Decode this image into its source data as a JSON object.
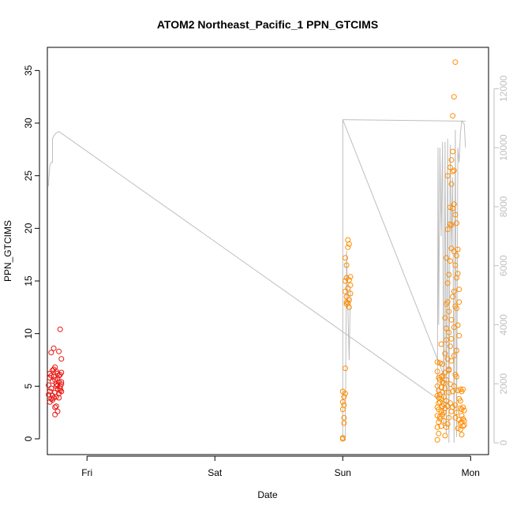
{
  "chart_data": {
    "type": "scatter",
    "title": "ATOM2 Northeast_Pacific_1 PPN_GTCIMS",
    "xlabel": "Date",
    "ylabel": "PPN_GTCIMS",
    "x_ticks": [
      "Fri",
      "Sat",
      "Sun",
      "Mon"
    ],
    "x_tick_positions_days": [
      1,
      2,
      3,
      4
    ],
    "xlim_days": [
      0.69,
      4.14
    ],
    "ylim": [
      -1.5,
      37.2
    ],
    "y_ticks": [
      0,
      5,
      10,
      15,
      20,
      25,
      30,
      35
    ],
    "y2_ticks": [
      0,
      2000,
      4000,
      6000,
      8000,
      10000,
      12000
    ],
    "y2lim": [
      -400,
      13400
    ],
    "colors": {
      "flight1": "#e8140f",
      "flight2": "#ff8c00",
      "altitude_line": "#bebebe"
    },
    "series": [
      {
        "color": "#e8140f",
        "points": [
          [
            0.7,
            4.2
          ],
          [
            0.7,
            5.1
          ],
          [
            0.71,
            3.5
          ],
          [
            0.71,
            6.2
          ],
          [
            0.72,
            4.8
          ],
          [
            0.72,
            3.8
          ],
          [
            0.72,
            8.2
          ],
          [
            0.73,
            5.5
          ],
          [
            0.73,
            4.1
          ],
          [
            0.73,
            6.5
          ],
          [
            0.74,
            3.9
          ],
          [
            0.74,
            8.6
          ],
          [
            0.74,
            5.9
          ],
          [
            0.75,
            4.4
          ],
          [
            0.75,
            6.8
          ],
          [
            0.75,
            3.0
          ],
          [
            0.75,
            2.3
          ],
          [
            0.76,
            5.2
          ],
          [
            0.76,
            6.4
          ],
          [
            0.76,
            4.0
          ],
          [
            0.77,
            2.6
          ],
          [
            0.77,
            5.7
          ],
          [
            0.77,
            6.2
          ],
          [
            0.77,
            4.7
          ],
          [
            0.78,
            6.0
          ],
          [
            0.78,
            3.9
          ],
          [
            0.78,
            5.4
          ],
          [
            0.78,
            8.3
          ],
          [
            0.79,
            6.1
          ],
          [
            0.79,
            4.8
          ],
          [
            0.79,
            10.4
          ],
          [
            0.79,
            5.0
          ],
          [
            0.8,
            7.6
          ],
          [
            0.8,
            5.2
          ],
          [
            0.8,
            4.5
          ],
          [
            0.8,
            6.3
          ],
          [
            0.71,
            4.5
          ],
          [
            0.73,
            3.7
          ],
          [
            0.76,
            5.0
          ],
          [
            0.78,
            4.3
          ],
          [
            0.74,
            6.6
          ],
          [
            0.72,
            6.0
          ],
          [
            0.75,
            5.6
          ],
          [
            0.79,
            4.6
          ],
          [
            0.77,
            5.1
          ],
          [
            0.8,
            5.4
          ],
          [
            0.71,
            5.8
          ],
          [
            0.76,
            3.1
          ]
        ]
      },
      {
        "color": "#ff8c00",
        "points": [
          [
            3.0,
            0.1
          ],
          [
            3.0,
            0.0
          ],
          [
            3.0,
            2.8
          ],
          [
            3.0,
            3.5
          ],
          [
            3.0,
            4.5
          ],
          [
            3.01,
            4.0
          ],
          [
            3.01,
            1.5
          ],
          [
            3.01,
            2.0
          ],
          [
            3.01,
            3.2
          ],
          [
            3.02,
            4.3
          ],
          [
            3.02,
            6.7
          ],
          [
            3.02,
            15.0
          ],
          [
            3.02,
            14.0
          ],
          [
            3.02,
            17.2
          ],
          [
            3.03,
            13.0
          ],
          [
            3.03,
            15.3
          ],
          [
            3.03,
            12.8
          ],
          [
            3.03,
            16.5
          ],
          [
            3.03,
            13.5
          ],
          [
            3.04,
            18.2
          ],
          [
            3.04,
            12.9
          ],
          [
            3.04,
            14.3
          ],
          [
            3.04,
            18.9
          ],
          [
            3.05,
            12.5
          ],
          [
            3.05,
            15.1
          ],
          [
            3.05,
            13.2
          ],
          [
            3.05,
            18.5
          ],
          [
            3.06,
            14.6
          ],
          [
            3.06,
            13.8
          ],
          [
            3.06,
            15.4
          ],
          [
            3.74,
            1.1
          ],
          [
            3.74,
            2.2
          ],
          [
            3.74,
            3.0
          ],
          [
            3.74,
            4.1
          ],
          [
            3.74,
            5.0
          ],
          [
            3.74,
            6.4
          ],
          [
            3.74,
            7.3
          ],
          [
            3.74,
            -0.1
          ],
          [
            3.75,
            1.6
          ],
          [
            3.75,
            2.8
          ],
          [
            3.75,
            3.9
          ],
          [
            3.75,
            4.6
          ],
          [
            3.75,
            3.4
          ],
          [
            3.75,
            0.5
          ],
          [
            3.76,
            2.1
          ],
          [
            3.76,
            4.2
          ],
          [
            3.76,
            3.5
          ],
          [
            3.76,
            1.9
          ],
          [
            3.76,
            7.2
          ],
          [
            3.77,
            2.6
          ],
          [
            3.77,
            3.8
          ],
          [
            3.77,
            4.9
          ],
          [
            3.77,
            9.0
          ],
          [
            3.77,
            1.2
          ],
          [
            3.78,
            3.1
          ],
          [
            3.78,
            4.4
          ],
          [
            3.78,
            2.3
          ],
          [
            3.78,
            5.4
          ],
          [
            3.78,
            7.1
          ],
          [
            3.79,
            4.0
          ],
          [
            3.79,
            3.3
          ],
          [
            3.79,
            1.7
          ],
          [
            3.79,
            5.3
          ],
          [
            3.8,
            11.5
          ],
          [
            3.8,
            6.3
          ],
          [
            3.8,
            4.8
          ],
          [
            3.8,
            2.9
          ],
          [
            3.8,
            8.1
          ],
          [
            3.81,
            12.8
          ],
          [
            3.81,
            10.5
          ],
          [
            3.81,
            17.2
          ],
          [
            3.81,
            9.4
          ],
          [
            3.81,
            5.6
          ],
          [
            3.81,
            3.6
          ],
          [
            3.82,
            14.8
          ],
          [
            3.82,
            13.0
          ],
          [
            3.82,
            19.9
          ],
          [
            3.82,
            7.6
          ],
          [
            3.82,
            25.0
          ],
          [
            3.82,
            3.1
          ],
          [
            3.83,
            15.6
          ],
          [
            3.83,
            12.1
          ],
          [
            3.83,
            10.1
          ],
          [
            3.83,
            6.5
          ],
          [
            3.83,
            4.4
          ],
          [
            3.83,
            2.0
          ],
          [
            3.84,
            22.0
          ],
          [
            3.84,
            25.8
          ],
          [
            3.84,
            20.4
          ],
          [
            3.84,
            16.9
          ],
          [
            3.84,
            8.8
          ],
          [
            3.84,
            5.2
          ],
          [
            3.85,
            26.5
          ],
          [
            3.85,
            24.2
          ],
          [
            3.85,
            20.3
          ],
          [
            3.85,
            18.1
          ],
          [
            3.85,
            11.3
          ],
          [
            3.85,
            9.5
          ],
          [
            3.85,
            7.4
          ],
          [
            3.86,
            27.3
          ],
          [
            3.86,
            25.4
          ],
          [
            3.86,
            21.9
          ],
          [
            3.86,
            30.7
          ],
          [
            3.86,
            13.5
          ],
          [
            3.86,
            4.5
          ],
          [
            3.87,
            32.5
          ],
          [
            3.87,
            25.5
          ],
          [
            3.87,
            22.3
          ],
          [
            3.87,
            17.8
          ],
          [
            3.87,
            14.0
          ],
          [
            3.87,
            10.6
          ],
          [
            3.87,
            7.9
          ],
          [
            3.88,
            35.8
          ],
          [
            3.88,
            21.3
          ],
          [
            3.88,
            16.5
          ],
          [
            3.88,
            12.6
          ],
          [
            3.88,
            6.1
          ],
          [
            3.88,
            3.2
          ],
          [
            3.89,
            20.5
          ],
          [
            3.89,
            17.4
          ],
          [
            3.89,
            15.3
          ],
          [
            3.89,
            12.4
          ],
          [
            3.89,
            5.9
          ],
          [
            3.89,
            2.5
          ],
          [
            3.9,
            18.0
          ],
          [
            3.9,
            15.7
          ],
          [
            3.9,
            10.8
          ],
          [
            3.9,
            4.6
          ],
          [
            3.91,
            14.2
          ],
          [
            3.91,
            13.0
          ],
          [
            3.91,
            3.8
          ],
          [
            3.91,
            1.8
          ],
          [
            3.92,
            4.7
          ],
          [
            3.92,
            2.9
          ],
          [
            3.92,
            1.5
          ],
          [
            3.92,
            0.9
          ],
          [
            3.93,
            4.5
          ],
          [
            3.93,
            2.8
          ],
          [
            3.93,
            1.6
          ],
          [
            3.93,
            0.4
          ],
          [
            3.94,
            4.7
          ],
          [
            3.94,
            3.0
          ],
          [
            3.94,
            1.9
          ],
          [
            3.94,
            1.2
          ],
          [
            3.95,
            2.7
          ],
          [
            3.95,
            1.7
          ],
          [
            3.95,
            1.3
          ],
          [
            3.76,
            5.6
          ],
          [
            3.78,
            6.0
          ],
          [
            3.79,
            2.5
          ],
          [
            3.8,
            0.3
          ],
          [
            3.77,
            5.9
          ],
          [
            3.83,
            6.6
          ],
          [
            3.86,
            3.0
          ],
          [
            3.88,
            2.0
          ],
          [
            3.9,
            1.0
          ],
          [
            3.84,
            3.4
          ],
          [
            3.82,
            1.4
          ],
          [
            3.85,
            2.6
          ],
          [
            3.81,
            1.1
          ],
          [
            3.87,
            5.0
          ],
          [
            3.89,
            8.4
          ],
          [
            3.91,
            9.8
          ],
          [
            3.93,
            2.2
          ],
          [
            3.75,
            5.8
          ],
          [
            3.92,
            3.6
          ]
        ]
      }
    ],
    "altitude_line": [
      [
        0.7,
        8700
      ],
      [
        0.7,
        8900
      ],
      [
        0.71,
        9400
      ],
      [
        0.72,
        9500
      ],
      [
        0.73,
        9500
      ],
      [
        0.73,
        10300
      ],
      [
        0.74,
        10400
      ],
      [
        0.76,
        10500
      ],
      [
        0.78,
        10550
      ],
      [
        3.74,
        1500
      ],
      [
        3.76,
        1900
      ],
      [
        3.78,
        2400
      ],
      [
        3.0,
        10950
      ],
      [
        3.0,
        200
      ],
      [
        3.02,
        100
      ],
      [
        3.03,
        6500
      ],
      [
        3.04,
        4500
      ],
      [
        3.05,
        2800
      ],
      [
        3.06,
        5200
      ]
    ]
  }
}
